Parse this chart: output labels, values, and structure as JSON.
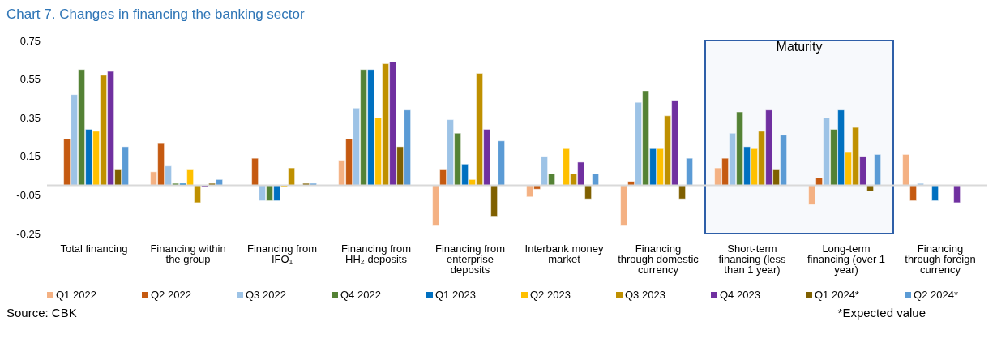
{
  "chart_data": {
    "type": "bar",
    "title": "Chart 7. Changes in financing the banking sector",
    "categories": [
      "Total financing",
      "Financing within the group",
      "Financing from IFO₁",
      "Financing from HH₂ deposits",
      "Financing from enterprise deposits",
      "Interbank money market",
      "Financing through domestic currency",
      "Short-term financing (less than 1 year)",
      "Long-term financing (over 1 year)",
      "Financing through foreign currency"
    ],
    "series": [
      {
        "name": "Q1 2022",
        "color": "#f4b183",
        "values": [
          null,
          0.07,
          null,
          0.13,
          -0.21,
          -0.06,
          -0.21,
          0.09,
          -0.1,
          0.16
        ]
      },
      {
        "name": "Q2 2022",
        "color": "#c55a11",
        "values": [
          0.24,
          0.22,
          0.14,
          0.24,
          0.08,
          -0.02,
          0.02,
          0.14,
          0.04,
          -0.08
        ]
      },
      {
        "name": "Q3 2022",
        "color": "#9dc3e6",
        "values": [
          0.47,
          0.1,
          -0.08,
          0.4,
          0.34,
          0.15,
          0.43,
          0.27,
          0.35,
          0.01
        ]
      },
      {
        "name": "Q4 2022",
        "color": "#548235",
        "values": [
          0.6,
          0.01,
          -0.08,
          0.6,
          0.27,
          0.06,
          0.49,
          0.38,
          0.29,
          null
        ]
      },
      {
        "name": "Q1 2023",
        "color": "#0070c0",
        "values": [
          0.29,
          0.01,
          -0.08,
          0.6,
          0.11,
          null,
          0.19,
          0.2,
          0.39,
          -0.08
        ]
      },
      {
        "name": "Q2 2023",
        "color": "#ffc000",
        "values": [
          0.28,
          0.08,
          -0.01,
          0.35,
          0.03,
          0.19,
          0.19,
          0.19,
          0.17,
          null
        ]
      },
      {
        "name": "Q3 2023",
        "color": "#bf9000",
        "values": [
          0.57,
          -0.09,
          0.09,
          0.63,
          0.58,
          0.06,
          0.36,
          0.28,
          0.3,
          null
        ]
      },
      {
        "name": "Q4 2023",
        "color": "#7030a0",
        "values": [
          0.59,
          -0.01,
          null,
          0.64,
          0.29,
          0.12,
          0.44,
          0.39,
          0.15,
          -0.09
        ]
      },
      {
        "name": "Q1 2024*",
        "color": "#7f6000",
        "values": [
          0.08,
          0.01,
          0.01,
          0.2,
          -0.16,
          -0.07,
          -0.07,
          0.08,
          -0.03,
          null
        ]
      },
      {
        "name": "Q2 2024*",
        "color": "#5b9bd5",
        "values": [
          0.2,
          0.03,
          0.01,
          0.39,
          0.23,
          0.06,
          0.14,
          0.26,
          0.16,
          null
        ]
      }
    ],
    "ylim": [
      -0.25,
      0.75
    ],
    "yticks": [
      -0.25,
      -0.05,
      0.15,
      0.35,
      0.55,
      0.75
    ],
    "grid": false,
    "legend": "bottom",
    "bands": [
      {
        "axis": "x",
        "from": "Short-term financing (less than 1 year)",
        "to": "Long-term financing (over 1 year)",
        "label": "Maturity",
        "color": "#2e5fa8"
      }
    ],
    "annotations": [
      "Source: CBK",
      "*Expected value"
    ]
  }
}
